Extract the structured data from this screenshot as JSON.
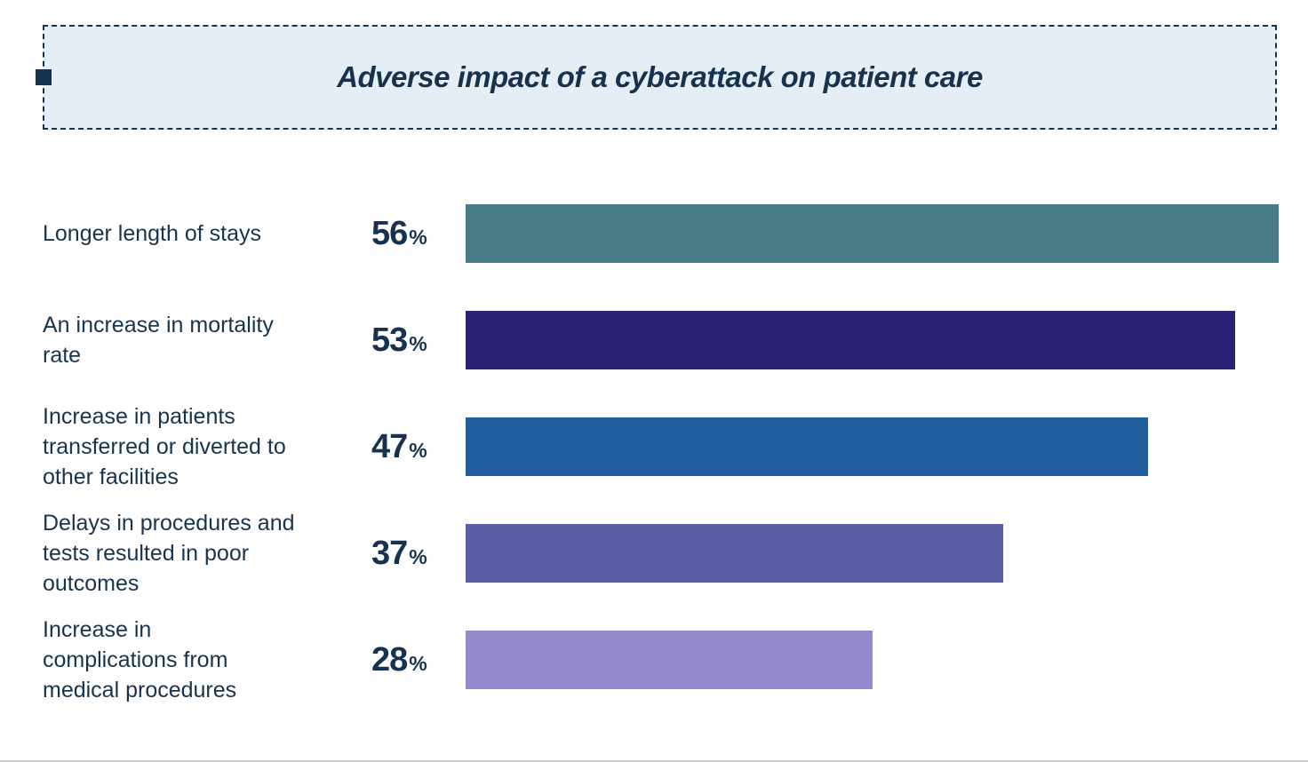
{
  "header": {
    "title": "Adverse impact of a cyberattack on patient care",
    "box_bg": "#e6eef5",
    "box_border": "#16324f",
    "marker_color": "#16324f"
  },
  "colors": {
    "text": "#17344f",
    "value_text": "#16324f",
    "page_bg": "#ffffff"
  },
  "chart_data": {
    "type": "bar",
    "orientation": "horizontal",
    "title": "Adverse impact of a cyberattack on patient care",
    "categories": [
      "Longer length of stays",
      "An increase in mortality\nrate",
      "Increase in patients\ntransferred or diverted to\nother facilities",
      "Delays in procedures and\ntests resulted in poor\noutcomes",
      "Increase in\ncomplications from\nmedical procedures"
    ],
    "values": [
      56,
      53,
      47,
      37,
      28
    ],
    "unit": "%",
    "value_labels": [
      "56%",
      "53%",
      "47%",
      "37%",
      "28%"
    ],
    "bar_colors": [
      "#477c87",
      "#292275",
      "#235e9e",
      "#5a5fa6",
      "#938acc"
    ],
    "xlim": [
      0,
      58
    ],
    "grid": false,
    "legend": false
  }
}
